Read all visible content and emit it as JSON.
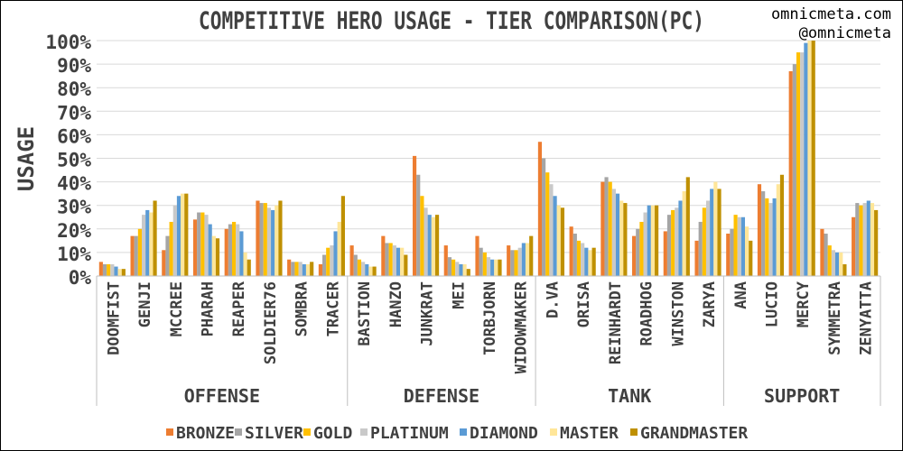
{
  "chart_data": {
    "type": "bar",
    "title": "COMPETITIVE HERO USAGE - TIER COMPARISON(PC)",
    "watermark": [
      "omnicmeta.com",
      "@omnicmeta"
    ],
    "ylabel": "USAGE",
    "ylim": [
      0,
      100
    ],
    "yticks": [
      "0%",
      "10%",
      "20%",
      "30%",
      "40%",
      "50%",
      "60%",
      "70%",
      "80%",
      "90%",
      "100%"
    ],
    "grid": true,
    "legend_position": "bottom",
    "groups": [
      {
        "name": "OFFENSE",
        "heroes": [
          "DOOMFIST",
          "GENJI",
          "MCCREE",
          "PHARAH",
          "REAPER",
          "SOLDIER76",
          "SOMBRA",
          "TRACER"
        ]
      },
      {
        "name": "DEFENSE",
        "heroes": [
          "BASTION",
          "HANZO",
          "JUNKRAT",
          "MEI",
          "TORBJORN",
          "WIDOWMAKER"
        ]
      },
      {
        "name": "TANK",
        "heroes": [
          "D.VA",
          "ORISA",
          "REINHARDT",
          "ROADHOG",
          "WINSTON",
          "ZARYA"
        ]
      },
      {
        "name": "SUPPORT",
        "heroes": [
          "ANA",
          "LUCIO",
          "MERCY",
          "SYMMETRA",
          "ZENYATTA"
        ]
      }
    ],
    "categories": [
      "DOOMFIST",
      "GENJI",
      "MCCREE",
      "PHARAH",
      "REAPER",
      "SOLDIER76",
      "SOMBRA",
      "TRACER",
      "BASTION",
      "HANZO",
      "JUNKRAT",
      "MEI",
      "TORBJORN",
      "WIDOWMAKER",
      "D.VA",
      "ORISA",
      "REINHARDT",
      "ROADHOG",
      "WINSTON",
      "ZARYA",
      "ANA",
      "LUCIO",
      "MERCY",
      "SYMMETRA",
      "ZENYATTA"
    ],
    "series": [
      {
        "name": "BRONZE",
        "color": "#ED7D31",
        "values": [
          6,
          17,
          11,
          24,
          20,
          32,
          7,
          5,
          13,
          17,
          51,
          13,
          17,
          13,
          57,
          21,
          40,
          17,
          19,
          15,
          18,
          39,
          87,
          20,
          25
        ]
      },
      {
        "name": "SILVER",
        "color": "#A5A5A5",
        "values": [
          5,
          17,
          17,
          27,
          22,
          31,
          6,
          9,
          9,
          14,
          43,
          8,
          12,
          11,
          50,
          18,
          42,
          20,
          26,
          23,
          20,
          36,
          90,
          18,
          31
        ]
      },
      {
        "name": "GOLD",
        "color": "#FFC000",
        "values": [
          5,
          20,
          23,
          27,
          23,
          31,
          6,
          12,
          7,
          14,
          34,
          7,
          10,
          11,
          44,
          15,
          40,
          23,
          28,
          29,
          26,
          33,
          95,
          13,
          30
        ]
      },
      {
        "name": "PLATINUM",
        "color": "#C9C9C9",
        "values": [
          5,
          26,
          30,
          26,
          22,
          29,
          6,
          13,
          6,
          13,
          29,
          6,
          8,
          12,
          39,
          14,
          37,
          27,
          29,
          32,
          25,
          31,
          95,
          11,
          31
        ]
      },
      {
        "name": "DIAMOND",
        "color": "#5B9BD5",
        "values": [
          4,
          28,
          34,
          22,
          19,
          28,
          5,
          19,
          5,
          12,
          26,
          5,
          7,
          14,
          34,
          12,
          35,
          30,
          32,
          37,
          25,
          33,
          99,
          10,
          32
        ]
      },
      {
        "name": "MASTER",
        "color": "#FFE699",
        "values": [
          3,
          27,
          35,
          17,
          10,
          30,
          5,
          23,
          4,
          12,
          25,
          5,
          7,
          14,
          30,
          11,
          32,
          30,
          36,
          40,
          21,
          39,
          100,
          10,
          31
        ]
      },
      {
        "name": "GRANDMASTER",
        "color": "#BF9000",
        "values": [
          3,
          32,
          35,
          16,
          7,
          32,
          6,
          34,
          4,
          9,
          26,
          3,
          7,
          17,
          29,
          12,
          31,
          30,
          42,
          37,
          15,
          43,
          100,
          5,
          28
        ]
      }
    ]
  }
}
